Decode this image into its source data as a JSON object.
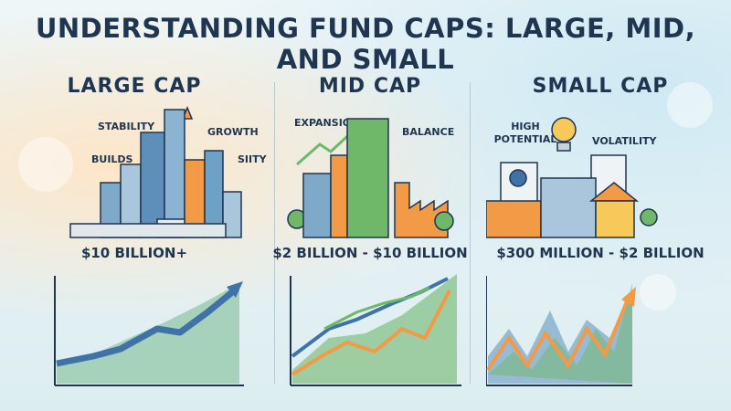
{
  "title": "UNDERSTANDING FUND CAPS: LARGE, MID, AND SMALL",
  "panels": [
    {
      "title": "LARGE CAP",
      "labels": [
        "STABILITY",
        "GROWTH",
        "BUILDS",
        "SIITY"
      ],
      "range": "$10 BILLION+",
      "icons": [
        "skyscraper-city-icon",
        "sparkle-icon",
        "rising-chart-icon"
      ]
    },
    {
      "title": "MID CAP",
      "labels": [
        "EXPANSION",
        "BALANCE"
      ],
      "range": "$2 BILLION - $10 BILLION",
      "icons": [
        "office-tower-icon",
        "factory-icon",
        "growth-arrow-icon",
        "tree-icon"
      ]
    },
    {
      "title": "SMALL CAP",
      "labels": [
        "HIGH POTENTIAL",
        "VOLATILITY"
      ],
      "range": "$300 MILLION - $2 BILLION",
      "icons": [
        "lightbulb-icon",
        "gear-document-icon",
        "shop-icon",
        "house-icon",
        "volatile-chart-icon"
      ]
    }
  ],
  "colors": {
    "navy": "#1f3550",
    "blue": "#3f73a8",
    "green": "#6fb86a",
    "orange": "#f29a45",
    "teal": "#4ea6a0"
  }
}
